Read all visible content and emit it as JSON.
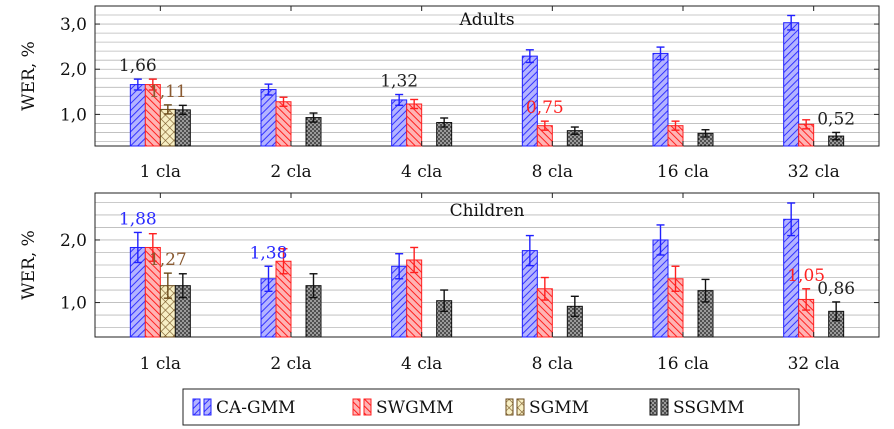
{
  "chart_data": [
    {
      "type": "bar",
      "title": "Adults",
      "xlabel": "",
      "ylabel": "WER, %",
      "ylim": [
        0.3,
        3.4
      ],
      "yticks": [
        "1,0",
        "2,0",
        "3,0"
      ],
      "grid": "horizontal",
      "categories": [
        "1 cla",
        "2 cla",
        "4 cla",
        "8 cla",
        "16 cla",
        "32 cla"
      ],
      "series": [
        {
          "name": "CA-GMM",
          "values": [
            1.66,
            1.55,
            1.32,
            2.29,
            2.35,
            3.03
          ],
          "errors": [
            0.12,
            0.12,
            0.12,
            0.14,
            0.14,
            0.16
          ]
        },
        {
          "name": "SWGMM",
          "values": [
            1.66,
            1.28,
            1.23,
            0.75,
            0.75,
            0.78
          ],
          "errors": [
            0.12,
            0.1,
            0.1,
            0.1,
            0.1,
            0.1
          ]
        },
        {
          "name": "SGMM",
          "values": [
            1.11,
            null,
            null,
            null,
            null,
            null
          ],
          "errors": [
            0.1,
            null,
            null,
            null,
            null,
            null
          ]
        },
        {
          "name": "SSGMM",
          "values": [
            1.1,
            0.93,
            0.82,
            0.64,
            0.58,
            0.52
          ],
          "errors": [
            0.1,
            0.1,
            0.1,
            0.08,
            0.08,
            0.08
          ]
        }
      ],
      "annotations": [
        {
          "text": "1,66",
          "category": "1 cla",
          "series": "CA-GMM",
          "color": "#222222"
        },
        {
          "text": "1,11",
          "category": "1 cla",
          "series": "SGMM",
          "color": "#8a5a32"
        },
        {
          "text": "1,32",
          "category": "4 cla",
          "series": "CA-GMM",
          "color": "#222222"
        },
        {
          "text": "0,75",
          "category": "8 cla",
          "series": "SWGMM",
          "color": "#ff2222"
        },
        {
          "text": "0,52",
          "category": "32 cla",
          "series": "SSGMM",
          "color": "#222222"
        }
      ]
    },
    {
      "type": "bar",
      "title": "Children",
      "xlabel": "",
      "ylabel": "WER, %",
      "ylim": [
        0.45,
        2.75
      ],
      "yticks": [
        "1,0",
        "2,0"
      ],
      "grid": "horizontal",
      "categories": [
        "1 cla",
        "2 cla",
        "4 cla",
        "8 cla",
        "16 cla",
        "32 cla"
      ],
      "series": [
        {
          "name": "CA-GMM",
          "values": [
            1.88,
            1.38,
            1.58,
            1.83,
            2.0,
            2.33
          ],
          "errors": [
            0.24,
            0.2,
            0.2,
            0.24,
            0.24,
            0.26
          ]
        },
        {
          "name": "SWGMM",
          "values": [
            1.88,
            1.66,
            1.68,
            1.22,
            1.38,
            1.05
          ],
          "errors": [
            0.22,
            0.2,
            0.2,
            0.18,
            0.2,
            0.17
          ]
        },
        {
          "name": "SGMM",
          "values": [
            1.27,
            null,
            null,
            null,
            null,
            null
          ],
          "errors": [
            0.2,
            null,
            null,
            null,
            null,
            null
          ]
        },
        {
          "name": "SSGMM",
          "values": [
            1.27,
            1.27,
            1.03,
            0.94,
            1.19,
            0.86
          ],
          "errors": [
            0.19,
            0.19,
            0.17,
            0.16,
            0.18,
            0.15
          ]
        }
      ],
      "annotations": [
        {
          "text": "1,88",
          "category": "1 cla",
          "series": "CA-GMM",
          "color": "#2a2aff"
        },
        {
          "text": "1,27",
          "category": "1 cla",
          "series": "SGMM",
          "color": "#8a5a32"
        },
        {
          "text": "1,38",
          "category": "2 cla",
          "series": "CA-GMM",
          "color": "#2a2aff"
        },
        {
          "text": "1,05",
          "category": "32 cla",
          "series": "SWGMM",
          "color": "#ff2222"
        },
        {
          "text": "0,86",
          "category": "32 cla",
          "series": "SSGMM",
          "color": "#222222"
        }
      ]
    }
  ],
  "legend": {
    "placement": "bottom",
    "entries": [
      {
        "label": "CA-GMM",
        "pattern": "hatch-right",
        "color": "#3333ff",
        "fill": "#b3b3ff"
      },
      {
        "label": "SWGMM",
        "pattern": "hatch-left",
        "color": "#ff2020",
        "fill": "#ffb3b3"
      },
      {
        "label": "SGMM",
        "pattern": "crosshatch",
        "color": "#7a5a2a",
        "fill": "#f7efc4"
      },
      {
        "label": "SSGMM",
        "pattern": "dots",
        "color": "#1a1a1a",
        "fill": "#9b9b9b"
      }
    ]
  }
}
